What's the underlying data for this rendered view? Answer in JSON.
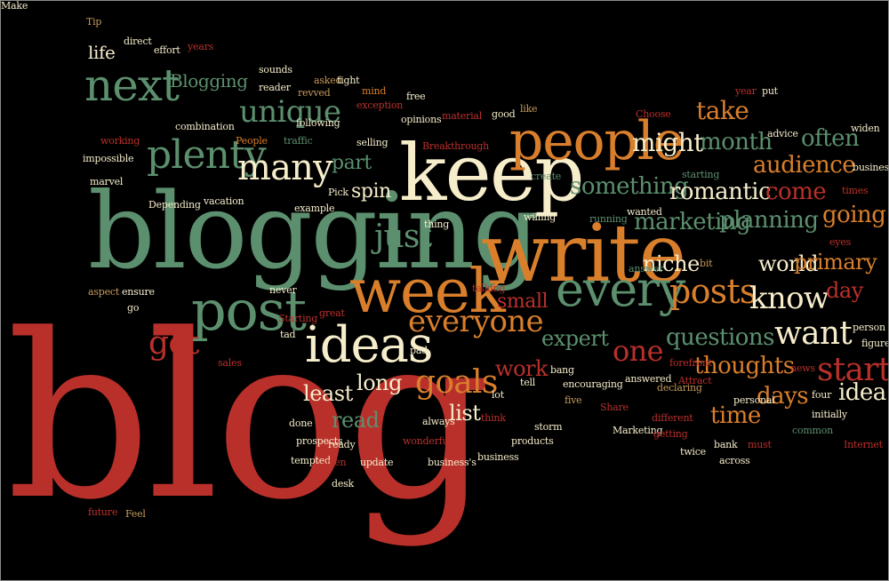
{
  "palette": {
    "background": "#000000",
    "red": "#b9302b",
    "green": "#5c8f6e",
    "cream": "#f6edcb",
    "orange": "#d97f2c",
    "tan": "#c79a5c"
  },
  "words": [
    {
      "text": "blog",
      "color": "red"
    },
    {
      "text": "blogging",
      "color": "green"
    },
    {
      "text": "write",
      "color": "orange"
    },
    {
      "text": "keep",
      "color": "cream"
    },
    {
      "text": "week",
      "color": "orange"
    },
    {
      "text": "people",
      "color": "orange"
    },
    {
      "text": "post",
      "color": "green"
    },
    {
      "text": "ideas",
      "color": "cream"
    },
    {
      "text": "every",
      "color": "green"
    },
    {
      "text": "next",
      "color": "green"
    },
    {
      "text": "plenty",
      "color": "green"
    },
    {
      "text": "many",
      "color": "cream"
    },
    {
      "text": "unique",
      "color": "green"
    },
    {
      "text": "just",
      "color": "green"
    },
    {
      "text": "get",
      "color": "red"
    },
    {
      "text": "everyone",
      "color": "orange"
    },
    {
      "text": "goals",
      "color": "orange"
    },
    {
      "text": "posts",
      "color": "orange"
    },
    {
      "text": "know",
      "color": "cream"
    },
    {
      "text": "want",
      "color": "cream"
    },
    {
      "text": "start",
      "color": "red"
    },
    {
      "text": "one",
      "color": "red"
    },
    {
      "text": "might",
      "color": "cream"
    },
    {
      "text": "take",
      "color": "orange"
    },
    {
      "text": "month",
      "color": "green"
    },
    {
      "text": "often",
      "color": "green"
    },
    {
      "text": "audience",
      "color": "orange"
    },
    {
      "text": "something",
      "color": "green"
    },
    {
      "text": "romantic",
      "color": "cream"
    },
    {
      "text": "come",
      "color": "red"
    },
    {
      "text": "marketing",
      "color": "green"
    },
    {
      "text": "planning",
      "color": "green"
    },
    {
      "text": "going",
      "color": "orange"
    },
    {
      "text": "niche",
      "color": "cream"
    },
    {
      "text": "world",
      "color": "cream"
    },
    {
      "text": "primary",
      "color": "orange"
    },
    {
      "text": "day",
      "color": "red"
    },
    {
      "text": "questions",
      "color": "green"
    },
    {
      "text": "thoughts",
      "color": "orange"
    },
    {
      "text": "expert",
      "color": "green"
    },
    {
      "text": "days",
      "color": "orange"
    },
    {
      "text": "idea",
      "color": "cream"
    },
    {
      "text": "time",
      "color": "orange"
    },
    {
      "text": "work",
      "color": "red"
    },
    {
      "text": "least",
      "color": "cream"
    },
    {
      "text": "long",
      "color": "cream"
    },
    {
      "text": "read",
      "color": "green"
    },
    {
      "text": "list",
      "color": "cream"
    },
    {
      "text": "part",
      "color": "green"
    },
    {
      "text": "spin",
      "color": "cream"
    },
    {
      "text": "small",
      "color": "red"
    },
    {
      "text": "life",
      "color": "cream"
    },
    {
      "text": "Blogging",
      "color": "green"
    },
    {
      "text": "Tip",
      "color": "tan"
    },
    {
      "text": "direct",
      "color": "cream"
    },
    {
      "text": "effort",
      "color": "cream"
    },
    {
      "text": "years",
      "color": "red"
    },
    {
      "text": "sounds",
      "color": "cream"
    },
    {
      "text": "reader",
      "color": "cream"
    },
    {
      "text": "asked",
      "color": "tan"
    },
    {
      "text": "tight",
      "color": "cream"
    },
    {
      "text": "revved",
      "color": "tan"
    },
    {
      "text": "mind",
      "color": "orange"
    },
    {
      "text": "exception",
      "color": "red"
    },
    {
      "text": "free",
      "color": "cream"
    },
    {
      "text": "opinions",
      "color": "cream"
    },
    {
      "text": "material",
      "color": "red"
    },
    {
      "text": "good",
      "color": "cream"
    },
    {
      "text": "like",
      "color": "tan"
    },
    {
      "text": "year",
      "color": "red"
    },
    {
      "text": "put",
      "color": "cream"
    },
    {
      "text": "Choose",
      "color": "red"
    },
    {
      "text": "advice",
      "color": "cream"
    },
    {
      "text": "widen",
      "color": "cream"
    },
    {
      "text": "combination",
      "color": "cream"
    },
    {
      "text": "following",
      "color": "cream"
    },
    {
      "text": "working",
      "color": "red"
    },
    {
      "text": "People",
      "color": "orange"
    },
    {
      "text": "traffic",
      "color": "green"
    },
    {
      "text": "selling",
      "color": "cream"
    },
    {
      "text": "Breakthrough",
      "color": "red"
    },
    {
      "text": "impossible",
      "color": "cream"
    },
    {
      "text": "marvel",
      "color": "cream"
    },
    {
      "text": "Depending",
      "color": "cream"
    },
    {
      "text": "vacation",
      "color": "cream"
    },
    {
      "text": "example",
      "color": "cream"
    },
    {
      "text": "Pick",
      "color": "cream"
    },
    {
      "text": "create",
      "color": "green"
    },
    {
      "text": "starting",
      "color": "green"
    },
    {
      "text": "businesses",
      "color": "cream"
    },
    {
      "text": "times",
      "color": "red"
    },
    {
      "text": "willing",
      "color": "cream"
    },
    {
      "text": "thing",
      "color": "cream"
    },
    {
      "text": "running",
      "color": "green"
    },
    {
      "text": "wanted",
      "color": "cream"
    },
    {
      "text": "eyes",
      "color": "red"
    },
    {
      "text": "answer",
      "color": "green"
    },
    {
      "text": "bit",
      "color": "tan"
    },
    {
      "text": "aspect",
      "color": "tan"
    },
    {
      "text": "ensure",
      "color": "cream"
    },
    {
      "text": "never",
      "color": "cream"
    },
    {
      "text": "talking",
      "color": "red"
    },
    {
      "text": "go",
      "color": "cream"
    },
    {
      "text": "Starting",
      "color": "red"
    },
    {
      "text": "great",
      "color": "red"
    },
    {
      "text": "tad",
      "color": "cream"
    },
    {
      "text": "pad",
      "color": "cream"
    },
    {
      "text": "person",
      "color": "cream"
    },
    {
      "text": "figure",
      "color": "cream"
    },
    {
      "text": "sales",
      "color": "red"
    },
    {
      "text": "forefront",
      "color": "red"
    },
    {
      "text": "news",
      "color": "red"
    },
    {
      "text": "bang",
      "color": "cream"
    },
    {
      "text": "answered",
      "color": "cream"
    },
    {
      "text": "declaring",
      "color": "tan"
    },
    {
      "text": "Attract",
      "color": "red"
    },
    {
      "text": "personal",
      "color": "cream"
    },
    {
      "text": "four",
      "color": "cream"
    },
    {
      "text": "lot",
      "color": "cream"
    },
    {
      "text": "tell",
      "color": "cream"
    },
    {
      "text": "encouraging",
      "color": "cream"
    },
    {
      "text": "five",
      "color": "tan"
    },
    {
      "text": "Share",
      "color": "red"
    },
    {
      "text": "different",
      "color": "red"
    },
    {
      "text": "initially",
      "color": "cream"
    },
    {
      "text": "done",
      "color": "cream"
    },
    {
      "text": "always",
      "color": "cream"
    },
    {
      "text": "storm",
      "color": "cream"
    },
    {
      "text": "think",
      "color": "red"
    },
    {
      "text": "Marketing",
      "color": "cream"
    },
    {
      "text": "getting",
      "color": "red"
    },
    {
      "text": "common",
      "color": "green"
    },
    {
      "text": "prospects",
      "color": "cream"
    },
    {
      "text": "ready",
      "color": "cream"
    },
    {
      "text": "wonderful",
      "color": "red"
    },
    {
      "text": "products",
      "color": "cream"
    },
    {
      "text": "bank",
      "color": "cream"
    },
    {
      "text": "must",
      "color": "red"
    },
    {
      "text": "Internet",
      "color": "red"
    },
    {
      "text": "tempted",
      "color": "cream"
    },
    {
      "text": "open",
      "color": "red"
    },
    {
      "text": "update",
      "color": "cream"
    },
    {
      "text": "business's",
      "color": "cream"
    },
    {
      "text": "business",
      "color": "cream"
    },
    {
      "text": "twice",
      "color": "cream"
    },
    {
      "text": "across",
      "color": "cream"
    },
    {
      "text": "desk",
      "color": "cream"
    },
    {
      "text": "future",
      "color": "red"
    },
    {
      "text": "Feel",
      "color": "tan"
    },
    {
      "text": "Make",
      "color": "cream"
    }
  ]
}
